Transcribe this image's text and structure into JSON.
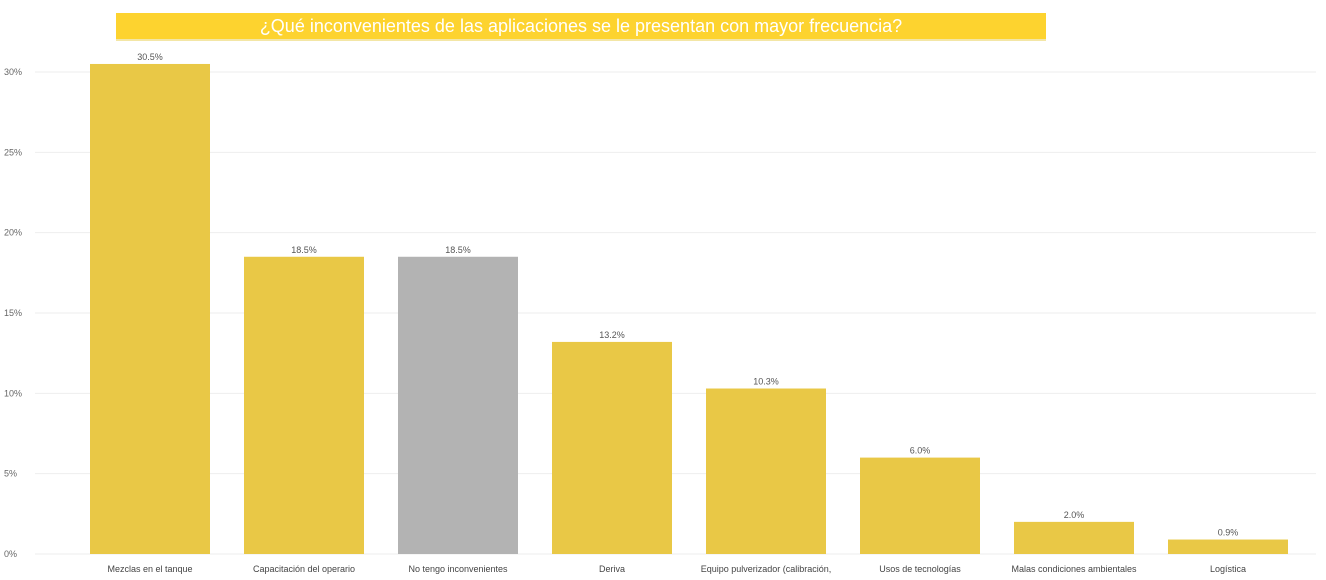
{
  "chart_data": {
    "type": "bar",
    "title": "¿Qué inconvenientes de las aplicaciones se le presentan con mayor frecuencia?",
    "categories": [
      "Mezclas en el tanque",
      "Capacitación del operario",
      "No tengo inconvenientes",
      "Deriva",
      "Equipo pulverizador (calibración,",
      "Usos de tecnologías",
      "Malas condiciones ambientales",
      "Logística"
    ],
    "values": [
      30.5,
      18.5,
      18.5,
      13.2,
      10.3,
      6.0,
      2.0,
      0.9
    ],
    "data_labels": [
      "30.5%",
      "18.5%",
      "18.5%",
      "13.2%",
      "10.3%",
      "6.0%",
      "2.0%",
      "0.9%"
    ],
    "highlight_index": 2,
    "colors": {
      "bar": "#E9C846",
      "highlight": "#B3B3B3",
      "banner": "#FDD32F",
      "grid": "#EEEEEE"
    },
    "yticks": [
      0,
      5,
      10,
      15,
      20,
      25,
      30
    ],
    "ytick_labels": [
      "0%",
      "5%",
      "10%",
      "15%",
      "20%",
      "25%",
      "30%"
    ],
    "ylim": [
      0,
      30
    ],
    "xlabel": "",
    "ylabel": "",
    "grid": true,
    "legend": "none"
  }
}
